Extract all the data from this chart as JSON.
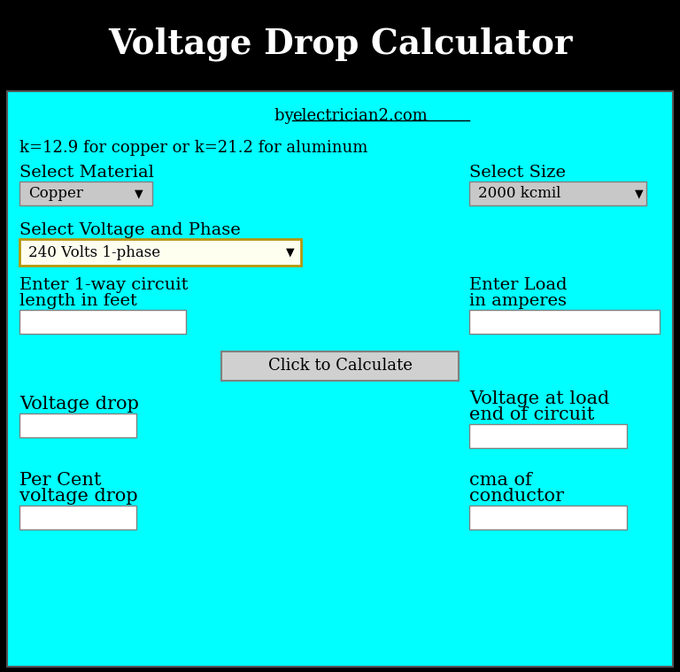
{
  "title": "Voltage Drop Calculator",
  "title_bg": "#000000",
  "title_color": "#ffffff",
  "title_fontsize": 28,
  "body_bg": "#00ffff",
  "subtitle_prefix": "by ",
  "subtitle_link": "electrician2.com",
  "formula_text": "k=12.9 for copper or k=21.2 for aluminum",
  "select_material_label": "Select Material",
  "select_material_value": "Copper",
  "select_size_label": "Select Size",
  "select_size_value": "2000 kcmil",
  "select_voltage_label": "Select Voltage and Phase",
  "select_voltage_value": "240 Volts 1-phase",
  "enter_length_line1": "Enter 1-way circuit",
  "enter_length_line2": "length in feet",
  "enter_load_line1": "Enter Load",
  "enter_load_line2": "in amperes",
  "button_text": "Click to Calculate",
  "voltage_drop_label": "Voltage drop",
  "voltage_at_load_line1": "Voltage at load",
  "voltage_at_load_line2": "end of circuit",
  "percent_voltage_line1": "Per Cent",
  "percent_voltage_line2": "voltage drop",
  "cma_line1": "cma of",
  "cma_line2": "conductor",
  "dropdown_bg": "#c8c8c8",
  "voltage_dropdown_bg": "#fffff0",
  "voltage_dropdown_border": "#b8960c",
  "input_bg": "#ffffff",
  "button_bg": "#d0d0d0",
  "text_color": "#000000",
  "border_color": "#808080",
  "body_border": "#555555"
}
